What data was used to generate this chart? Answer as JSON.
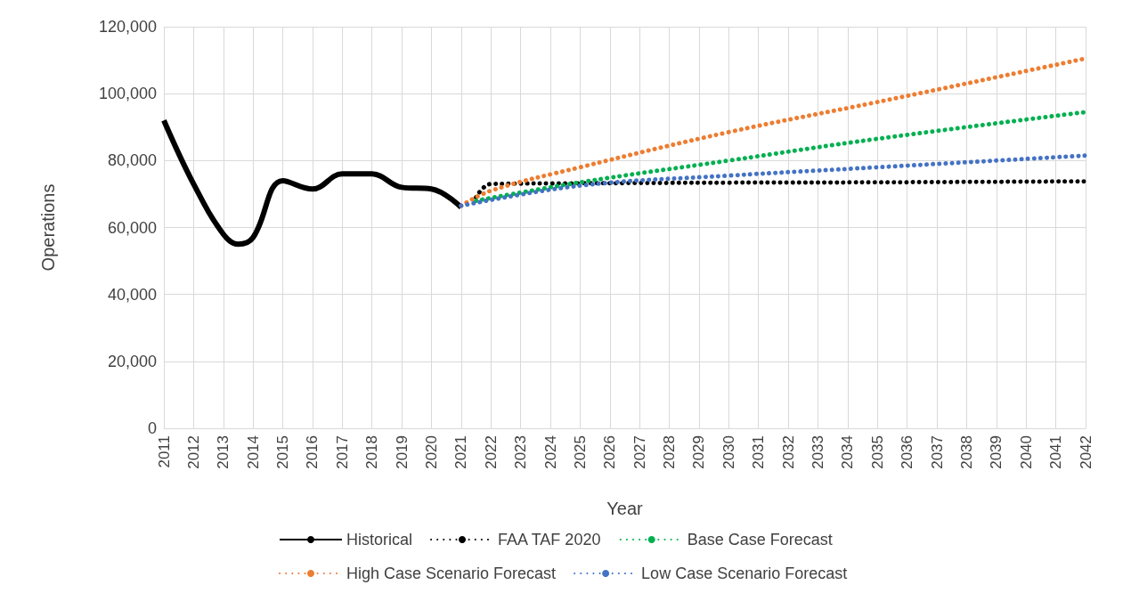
{
  "chart_data": {
    "type": "line",
    "xlabel": "Year",
    "ylabel": "Operations",
    "xlim": [
      2011,
      2042
    ],
    "xticks": [
      2011,
      2012,
      2013,
      2014,
      2015,
      2016,
      2017,
      2018,
      2019,
      2020,
      2021,
      2022,
      2023,
      2024,
      2025,
      2026,
      2027,
      2028,
      2029,
      2030,
      2031,
      2032,
      2033,
      2034,
      2035,
      2036,
      2037,
      2038,
      2039,
      2040,
      2041,
      2042
    ],
    "ylim": [
      0,
      120000
    ],
    "yticks": [
      0,
      {
        "value": 20000,
        "label": "20,000"
      },
      {
        "value": 40000,
        "label": "40,000"
      },
      {
        "value": 60000,
        "label": "60,000"
      },
      {
        "value": 80000,
        "label": "80,000"
      },
      {
        "value": 100000,
        "label": "100,000"
      },
      {
        "value": 120000,
        "label": "120,000"
      }
    ],
    "grid": true,
    "legend": "bottom",
    "marker": "none",
    "series": [
      {
        "name": "Historical",
        "color": "#000000",
        "line_style": "solid",
        "x": [
          2011,
          2012,
          2013,
          2013.5,
          2014,
          2015,
          2016,
          2017,
          2018,
          2019,
          2020,
          2021
        ],
        "values": [
          92000,
          73000,
          58000,
          55000,
          57000,
          74000,
          71500,
          76000,
          76000,
          72000,
          71500,
          66000
        ]
      },
      {
        "name": "FAA TAF 2020",
        "color": "#000000",
        "line_style": "dotted",
        "x": [
          2021.5,
          2022,
          2025,
          2030,
          2035,
          2042
        ],
        "values": [
          69000,
          73000,
          73200,
          73400,
          73500,
          73800
        ]
      },
      {
        "name": "Base Case Forecast",
        "color": "#00b050",
        "line_style": "dotted",
        "x": [
          2021.5,
          2025,
          2030,
          2035,
          2042
        ],
        "values": [
          68000,
          73500,
          80000,
          86500,
          94500
        ]
      },
      {
        "name": "High Case Scenario Forecast",
        "color": "#ed7d31",
        "line_style": "dotted",
        "x": [
          2021,
          2022,
          2025,
          2030,
          2035,
          2042
        ],
        "values": [
          66500,
          71000,
          78000,
          88500,
          97500,
          110500
        ]
      },
      {
        "name": "Low Case Scenario Forecast",
        "color": "#4472c4",
        "line_style": "dotted",
        "x": [
          2021,
          2025,
          2030,
          2035,
          2042
        ],
        "values": [
          66500,
          72500,
          75500,
          78000,
          81500
        ]
      }
    ]
  }
}
